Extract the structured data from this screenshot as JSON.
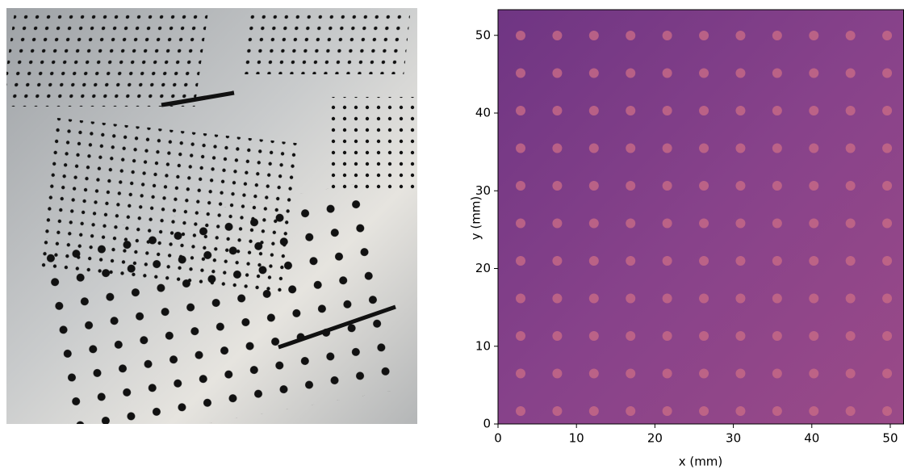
{
  "chart_data": {
    "type": "image",
    "xlabel": "x (mm)",
    "ylabel": "y (mm)",
    "xlim": [
      0,
      51.7
    ],
    "ylim": [
      0,
      53.3
    ],
    "xticks": [
      0,
      10,
      20,
      30,
      40,
      50
    ],
    "yticks": [
      0,
      10,
      20,
      30,
      40,
      50
    ]
  }
}
